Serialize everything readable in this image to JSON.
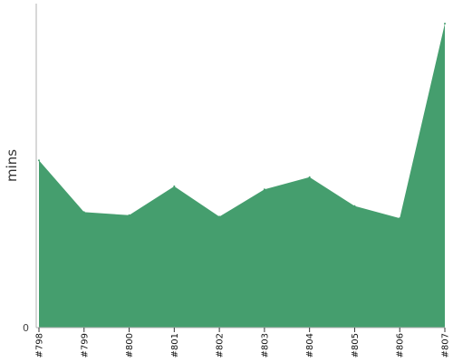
{
  "chart_data": {
    "type": "area",
    "title": "",
    "xlabel": "",
    "ylabel": "mins",
    "categories": [
      "#798",
      "#799",
      "#800",
      "#801",
      "#802",
      "#803",
      "#804",
      "#805",
      "#806",
      "#807"
    ],
    "series": [
      {
        "values": [
          55,
          38,
          37,
          46.5,
          36.5,
          45.5,
          49.5,
          40,
          36,
          100
        ]
      }
    ],
    "ylim": [
      0,
      106
    ],
    "yticks": [
      0
    ],
    "grid": false,
    "legend": "none",
    "colors": {
      "area": "#459e6e",
      "axis": "#b0b0b0",
      "tick": "#333333"
    }
  }
}
